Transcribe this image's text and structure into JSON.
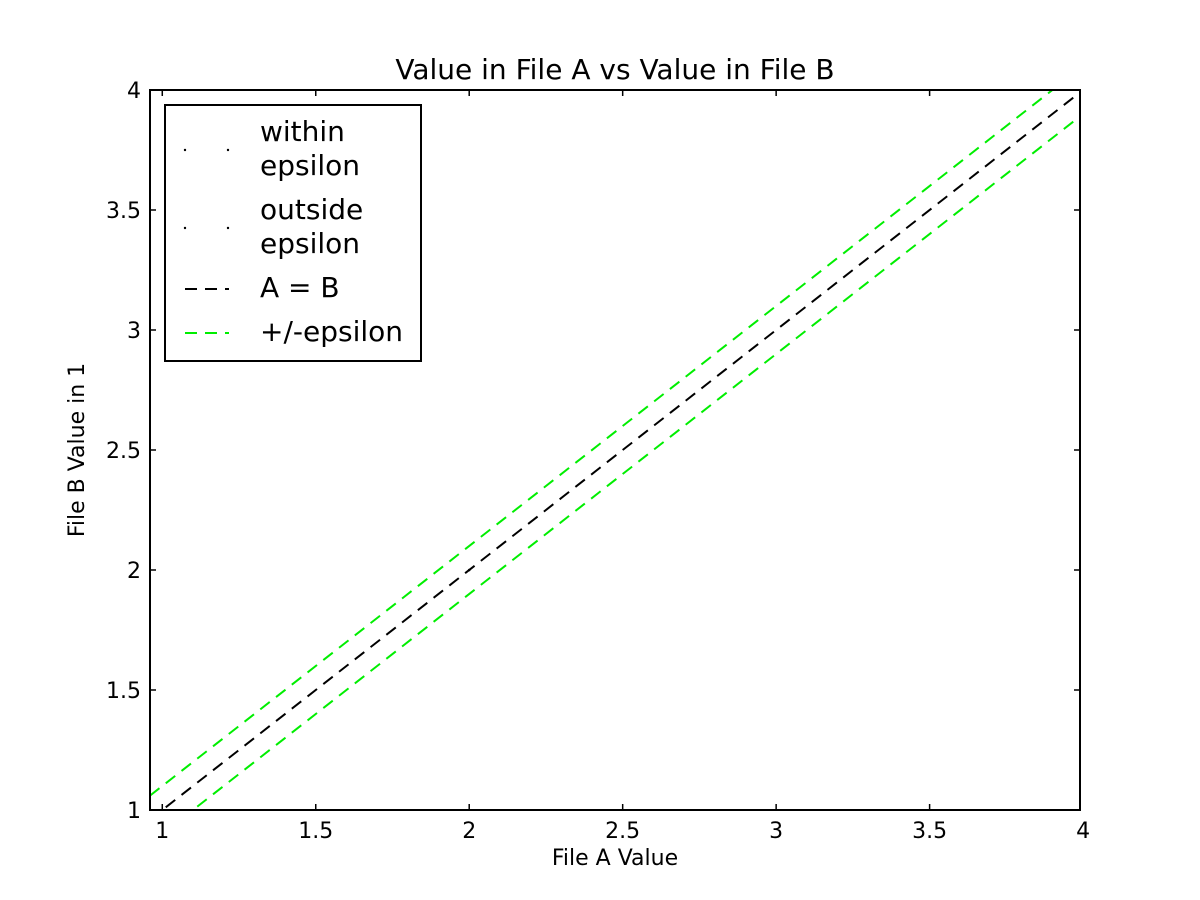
{
  "chart_data": {
    "type": "line",
    "title": "Value in File A vs Value in File B",
    "xlabel": "File A Value",
    "ylabel": "File B Value in 1",
    "xlim": [
      0.96,
      3.99
    ],
    "ylim": [
      1,
      4
    ],
    "x_ticks": [
      1,
      1.5,
      2,
      2.5,
      3,
      3.5,
      4
    ],
    "x_tick_labels": [
      "1",
      "1.5",
      "2",
      "2.5",
      "3",
      "3.5",
      "4"
    ],
    "y_ticks": [
      1,
      1.5,
      2,
      2.5,
      3,
      3.5,
      4
    ],
    "y_tick_labels": [
      "1",
      "1.5",
      "2",
      "2.5",
      "3",
      "3.5",
      "4"
    ],
    "grid": false,
    "legend_position": "top-left",
    "series": [
      {
        "name": "within epsilon",
        "name_lines": [
          "within",
          "epsilon"
        ],
        "kind": "points",
        "color": "#000000",
        "x": [
          2.0
        ],
        "y": [
          2.0
        ]
      },
      {
        "name": "outside epsilon",
        "name_lines": [
          "outside",
          "epsilon"
        ],
        "kind": "points",
        "color": "#000000",
        "x": [],
        "y": []
      },
      {
        "name": "A = B",
        "name_lines": [
          "A = B"
        ],
        "kind": "dashed-line",
        "color": "#000000",
        "x": [
          0.96,
          3.99
        ],
        "y": [
          0.96,
          3.99
        ]
      },
      {
        "name": "+/-epsilon",
        "name_lines": [
          "+/-epsilon"
        ],
        "kind": "dashed-line",
        "color": "#00ee00",
        "lines": [
          {
            "x": [
              0.96,
              3.99
            ],
            "y": [
              1.06,
              4.09
            ]
          },
          {
            "x": [
              0.96,
              3.99
            ],
            "y": [
              0.86,
              3.89
            ]
          }
        ]
      }
    ]
  }
}
